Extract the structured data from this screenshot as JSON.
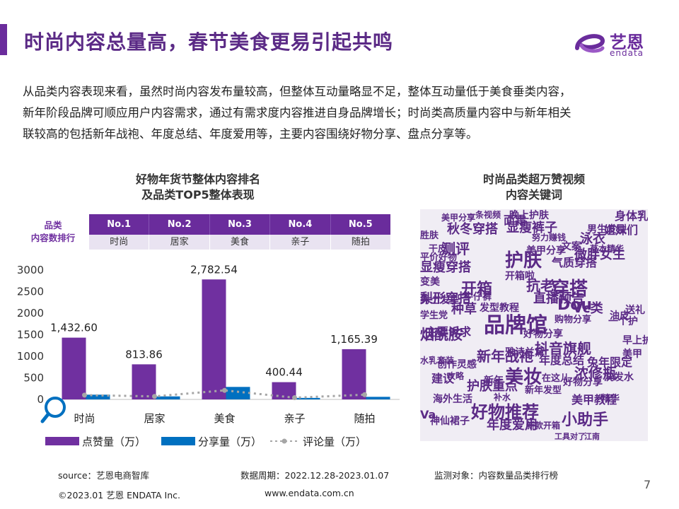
{
  "header": {
    "title": "时尚内容总量高，春节美食更易引起共鸣",
    "logo_cn": "艺恩",
    "logo_en": "endata"
  },
  "intro": {
    "line1": "从品类内容表现来看，虽然时尚内容发布量较高，但整体互动量略显不足，整体互动量低于美食垂类内容，",
    "line2": "新年阶段品牌可顺应用户内容需求，通过有需求度内容推进自身品牌增长；时尚类高质量内容中与新年相关",
    "line3": "联较高的包括新年战袍、年度总结、年度爱用等，主要内容围绕好物分享、盘点分享等。"
  },
  "left_panel": {
    "title_line1": "好物年货节整体内容排名",
    "title_line2": "及品类TOP5整体表现",
    "rank_label_line1": "品类",
    "rank_label_line2": "内容数排行",
    "ranks": [
      "No.1",
      "No.2",
      "No.3",
      "No.4",
      "No.5"
    ],
    "categories": [
      "时尚",
      "居家",
      "美食",
      "亲子",
      "随拍"
    ]
  },
  "chart_data": {
    "type": "bar",
    "categories": [
      "时尚",
      "居家",
      "美食",
      "亲子",
      "随拍"
    ],
    "series": [
      {
        "name": "点赞量（万）",
        "kind": "bar",
        "color": "#7030a0",
        "values": [
          1432.6,
          813.86,
          2782.54,
          400.44,
          1165.39
        ]
      },
      {
        "name": "分享量（万）",
        "kind": "bar",
        "color": "#0070c0",
        "values": [
          110,
          70,
          290,
          35,
          60
        ]
      },
      {
        "name": "评论量（万）",
        "kind": "line",
        "color": "#a6a6a6",
        "values": [
          100,
          70,
          210,
          40,
          110
        ]
      }
    ],
    "data_labels": [
      "1,432.60",
      "813.86",
      "2,782.54",
      "400.44",
      "1,165.39"
    ],
    "yticks": [
      0,
      500,
      1000,
      1500,
      2000,
      2500,
      3000
    ],
    "ylim": [
      0,
      3000
    ],
    "legend_position": "bottom",
    "grid": false
  },
  "right_panel": {
    "title_line1": "时尚品类超万赞视频",
    "title_line2": "内容关键词"
  },
  "wordcloud": [
    {
      "t": "品牌馆",
      "c": "#5b2a86"
    },
    {
      "t": "护肤",
      "c": "#5b2a86"
    },
    {
      "t": "穿搭",
      "c": "#5b2a86"
    },
    {
      "t": "美妆",
      "c": "#5b2a86"
    },
    {
      "t": "好物推荐",
      "c": "#5b2a86"
    },
    {
      "t": "抖音旗舰",
      "c": "#5b2a86"
    },
    {
      "t": "抗老",
      "c": "#5b2a86"
    },
    {
      "t": "开箱",
      "c": "#5b2a86"
    },
    {
      "t": "小助手",
      "c": "#5b2a86"
    },
    {
      "t": "浓修瓶",
      "c": "#5b2a86"
    },
    {
      "t": "新年战袍",
      "c": "#5b2a86"
    },
    {
      "t": "Dou",
      "c": "#5b2a86"
    },
    {
      "t": "秋冬穿搭",
      "c": "#5b2a86"
    },
    {
      "t": "显瘦裤子",
      "c": "#5b2a86"
    },
    {
      "t": "测评",
      "c": "#5b2a86"
    },
    {
      "t": "直播预告",
      "c": "#5b2a86"
    },
    {
      "t": "微胖女生",
      "c": "#5b2a86"
    },
    {
      "t": "年度爱用",
      "c": "#5b2a86"
    },
    {
      "t": "美甲教程",
      "c": "#5b2a86"
    },
    {
      "t": "烟酰胺",
      "c": "#5b2a86"
    },
    {
      "t": "年度总结",
      "c": "#5b2a86"
    },
    {
      "t": "显瘦穿搭",
      "c": "#5b2a86"
    },
    {
      "t": "主要诉求",
      "c": "#5b2a86"
    },
    {
      "t": "梨形穿搭",
      "c": "#5b2a86"
    },
    {
      "t": "护肤重点",
      "c": "#5b2a86"
    },
    {
      "t": "泳衣",
      "c": "#5b2a86"
    },
    {
      "t": "身体乳",
      "c": "#5b2a86"
    },
    {
      "t": "姐妹们",
      "c": "#5b2a86"
    },
    {
      "t": "Vc类",
      "c": "#5b2a86"
    },
    {
      "t": "种草",
      "c": "#5b2a86"
    },
    {
      "t": "兔年限定",
      "c": "#5b2a86"
    },
    {
      "t": "面霜",
      "c": "#5b2a86"
    },
    {
      "t": "男生发型",
      "c": "#5b2a86"
    },
    {
      "t": "气质穿搭",
      "c": "#5b2a86"
    },
    {
      "t": "创作灵感",
      "c": "#5b2a86"
    },
    {
      "t": "海外生活",
      "c": "#5b2a86"
    },
    {
      "t": "神仙裙子",
      "c": "#5b2a86"
    },
    {
      "t": "早上护肤",
      "c": "#5b2a86"
    },
    {
      "t": "洗发水",
      "c": "#5b2a86"
    },
    {
      "t": "雅诗兰黛",
      "c": "#5b2a86"
    },
    {
      "t": "建议",
      "c": "#5b2a86"
    },
    {
      "t": "新年",
      "c": "#5b2a86"
    },
    {
      "t": "文案",
      "c": "#5b2a86"
    },
    {
      "t": "美甲分享",
      "c": "#5b2a86"
    },
    {
      "t": "开箱啦",
      "c": "#5b2a86"
    },
    {
      "t": "送礼",
      "c": "#5b2a86"
    },
    {
      "t": "一个护",
      "c": "#5b2a86"
    },
    {
      "t": "油皮",
      "c": "#5b2a86"
    },
    {
      "t": "美甲",
      "c": "#5b2a86"
    },
    {
      "t": "发型教程",
      "c": "#5b2a86"
    },
    {
      "t": "男士发型",
      "c": "#5b2a86"
    },
    {
      "t": "购物分享",
      "c": "#5b2a86"
    },
    {
      "t": "变美",
      "c": "#5b2a86"
    },
    {
      "t": "晚上护肤",
      "c": "#5b2a86"
    },
    {
      "t": "好物分享",
      "c": "#5b2a86"
    },
    {
      "t": "在这儿",
      "c": "#5b2a86"
    },
    {
      "t": "新年发型",
      "c": "#5b2a86"
    },
    {
      "t": "Va",
      "c": "#5b2a86"
    },
    {
      "t": "学生党",
      "c": "#5b2a86"
    },
    {
      "t": "牛仔裤",
      "c": "#5b2a86"
    },
    {
      "t": "干皮",
      "c": "#5b2a86"
    },
    {
      "t": "胜肤",
      "c": "#5b2a86"
    },
    {
      "t": "美甲分享",
      "c": "#5b2a86"
    },
    {
      "t": "平价好物",
      "c": "#5b2a86"
    },
    {
      "t": "一条视频",
      "c": "#5b2a86"
    },
    {
      "t": "努力赚钱",
      "c": "#5b2a86"
    },
    {
      "t": "草本精华",
      "c": "#5b2a86"
    },
    {
      "t": "水乳套装",
      "c": "#5b2a86"
    },
    {
      "t": "攻略",
      "c": "#5b2a86"
    },
    {
      "t": "补水",
      "c": "#5b2a86"
    },
    {
      "t": "江南",
      "c": "#5b2a86"
    },
    {
      "t": "新款开箱",
      "c": "#5b2a86"
    },
    {
      "t": "工具对了",
      "c": "#5b2a86"
    },
    {
      "t": "精华",
      "c": "#5b2a86"
    },
    {
      "t": "好物分享",
      "c": "#5b2a86"
    }
  ],
  "footer": {
    "source": "source：艺恩电商智库",
    "period": "数据周期：2022.12.28-2023.01.07",
    "target": "监测对象：内容数量品类排行榜",
    "copyright": "©2023.01 艺恩 ENDATA Inc.",
    "website": "www.endata.com.cn",
    "page": "7"
  }
}
